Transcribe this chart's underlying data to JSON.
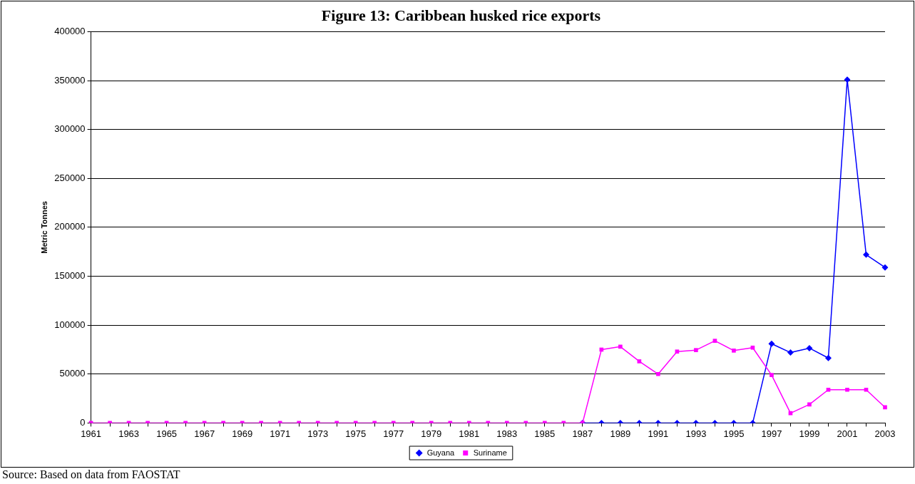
{
  "chart_data": {
    "type": "line",
    "title": "Figure 13: Caribbean husked rice exports",
    "ylabel": "Metric Tonnes",
    "categories": [
      "1961",
      null,
      "1963",
      null,
      "1965",
      null,
      "1967",
      null,
      "1969",
      null,
      "1971",
      null,
      "1973",
      null,
      "1975",
      null,
      "1977",
      null,
      "1979",
      null,
      "1981",
      null,
      "1983",
      null,
      "1985",
      null,
      "1987",
      null,
      "1989",
      null,
      "1991",
      null,
      "1993",
      null,
      "1995",
      null,
      "1997",
      null,
      "1999",
      null,
      "2001",
      null,
      "2003"
    ],
    "series": [
      {
        "name": "Guyana",
        "color": "#0000ff",
        "marker": "diamond",
        "values": [
          null,
          null,
          null,
          null,
          null,
          null,
          null,
          null,
          null,
          null,
          null,
          null,
          null,
          null,
          null,
          null,
          null,
          null,
          null,
          null,
          null,
          null,
          null,
          null,
          null,
          null,
          0,
          0,
          0,
          0,
          0,
          0,
          0,
          0,
          0,
          0,
          81000,
          72000,
          76500,
          66400,
          351000,
          172000,
          159000
        ]
      },
      {
        "name": "Suriname",
        "color": "#ff00ff",
        "marker": "square",
        "values": [
          0,
          0,
          0,
          0,
          0,
          0,
          0,
          0,
          0,
          0,
          0,
          0,
          0,
          0,
          0,
          0,
          0,
          0,
          0,
          0,
          0,
          0,
          0,
          0,
          0,
          0,
          0,
          75000,
          78000,
          63000,
          50000,
          73000,
          74500,
          84000,
          74000,
          77000,
          49000,
          10000,
          19000,
          34000,
          34000,
          34000,
          16000
        ]
      }
    ],
    "ylim": [
      0,
      400000
    ],
    "yticks": [
      0,
      50000,
      100000,
      150000,
      200000,
      250000,
      300000,
      350000,
      400000
    ],
    "grid": "y",
    "legend": "bottom",
    "line_style": "solid",
    "annotations": [
      "Source: Based on data from FAOSTAT"
    ]
  }
}
